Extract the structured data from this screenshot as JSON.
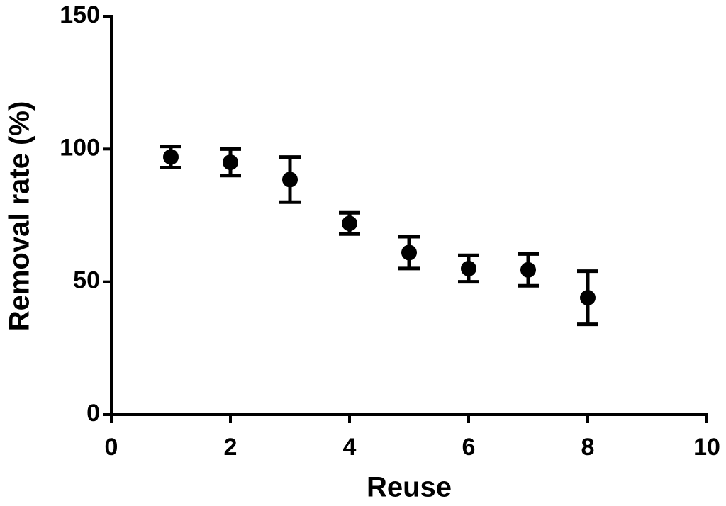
{
  "chart_data": {
    "type": "scatter",
    "x_label": "Reuse",
    "y_label": "Removal rate (%)",
    "x": [
      1,
      2,
      3,
      4,
      5,
      6,
      7,
      8
    ],
    "values": [
      97,
      95,
      88.5,
      72,
      61,
      55,
      54.5,
      44
    ],
    "errors": [
      4,
      5,
      8.5,
      4,
      6,
      5,
      6,
      10
    ],
    "color": "#000000",
    "xlim": [
      0,
      10
    ],
    "xticks": [
      0,
      2,
      4,
      6,
      8,
      10
    ],
    "ylim": [
      0,
      150
    ],
    "yticks": [
      0,
      50,
      100,
      150
    ],
    "grid": false
  }
}
